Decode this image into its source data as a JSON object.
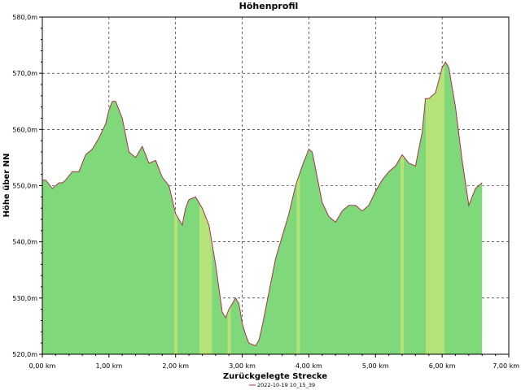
{
  "chart_data": {
    "type": "area",
    "title": "Höhenprofil",
    "xlabel": "Zurückgelegte Strecke",
    "ylabel": "Höhe über NN",
    "xlim": [
      0,
      7
    ],
    "ylim": [
      520,
      580
    ],
    "x_ticks": [
      "0,00 km",
      "1,00 km",
      "2,00 km",
      "3,00 km",
      "4,00 km",
      "5,00 km",
      "6,00 km",
      "7,00 km"
    ],
    "y_ticks": [
      "520,0m",
      "530,0m",
      "540,0m",
      "550,0m",
      "560,0m",
      "570,0m",
      "580,0m"
    ],
    "grid": true,
    "legend_position": "bottom-center",
    "series": [
      {
        "name": "2022-10-19 10_15_39",
        "line_color": "#a8324a",
        "x": [
          0.0,
          0.05,
          0.15,
          0.25,
          0.3,
          0.35,
          0.45,
          0.55,
          0.65,
          0.75,
          0.85,
          0.95,
          1.0,
          1.05,
          1.1,
          1.2,
          1.3,
          1.4,
          1.5,
          1.6,
          1.7,
          1.8,
          1.9,
          2.0,
          2.1,
          2.15,
          2.2,
          2.3,
          2.4,
          2.5,
          2.6,
          2.7,
          2.75,
          2.8,
          2.9,
          2.95,
          3.0,
          3.05,
          3.1,
          3.2,
          3.25,
          3.3,
          3.4,
          3.5,
          3.6,
          3.7,
          3.8,
          3.9,
          4.0,
          4.05,
          4.1,
          4.2,
          4.3,
          4.4,
          4.5,
          4.6,
          4.7,
          4.8,
          4.9,
          5.0,
          5.1,
          5.2,
          5.3,
          5.4,
          5.5,
          5.6,
          5.7,
          5.75,
          5.8,
          5.9,
          6.0,
          6.05,
          6.1,
          6.2,
          6.3,
          6.4,
          6.5,
          6.6
        ],
        "y": [
          551.0,
          551.0,
          549.5,
          550.5,
          550.5,
          551.0,
          552.5,
          552.5,
          555.5,
          556.5,
          558.5,
          561.0,
          563.5,
          565.0,
          565.0,
          562.0,
          556.0,
          555.0,
          557.0,
          554.0,
          554.5,
          551.5,
          550.0,
          545.0,
          543.0,
          546.0,
          547.5,
          548.0,
          546.0,
          543.0,
          536.0,
          527.5,
          526.5,
          528.0,
          530.0,
          529.0,
          525.5,
          523.5,
          522.0,
          521.5,
          522.5,
          525.0,
          531.0,
          537.0,
          541.0,
          545.0,
          550.0,
          553.5,
          556.5,
          556.0,
          553.0,
          547.0,
          544.5,
          543.5,
          545.5,
          546.5,
          546.5,
          545.5,
          546.5,
          549.0,
          551.0,
          552.5,
          553.5,
          555.5,
          554.0,
          553.5,
          559.5,
          565.5,
          565.5,
          566.5,
          571.0,
          572.0,
          571.0,
          564.0,
          554.5,
          546.5,
          549.5,
          550.5
        ]
      }
    ]
  }
}
